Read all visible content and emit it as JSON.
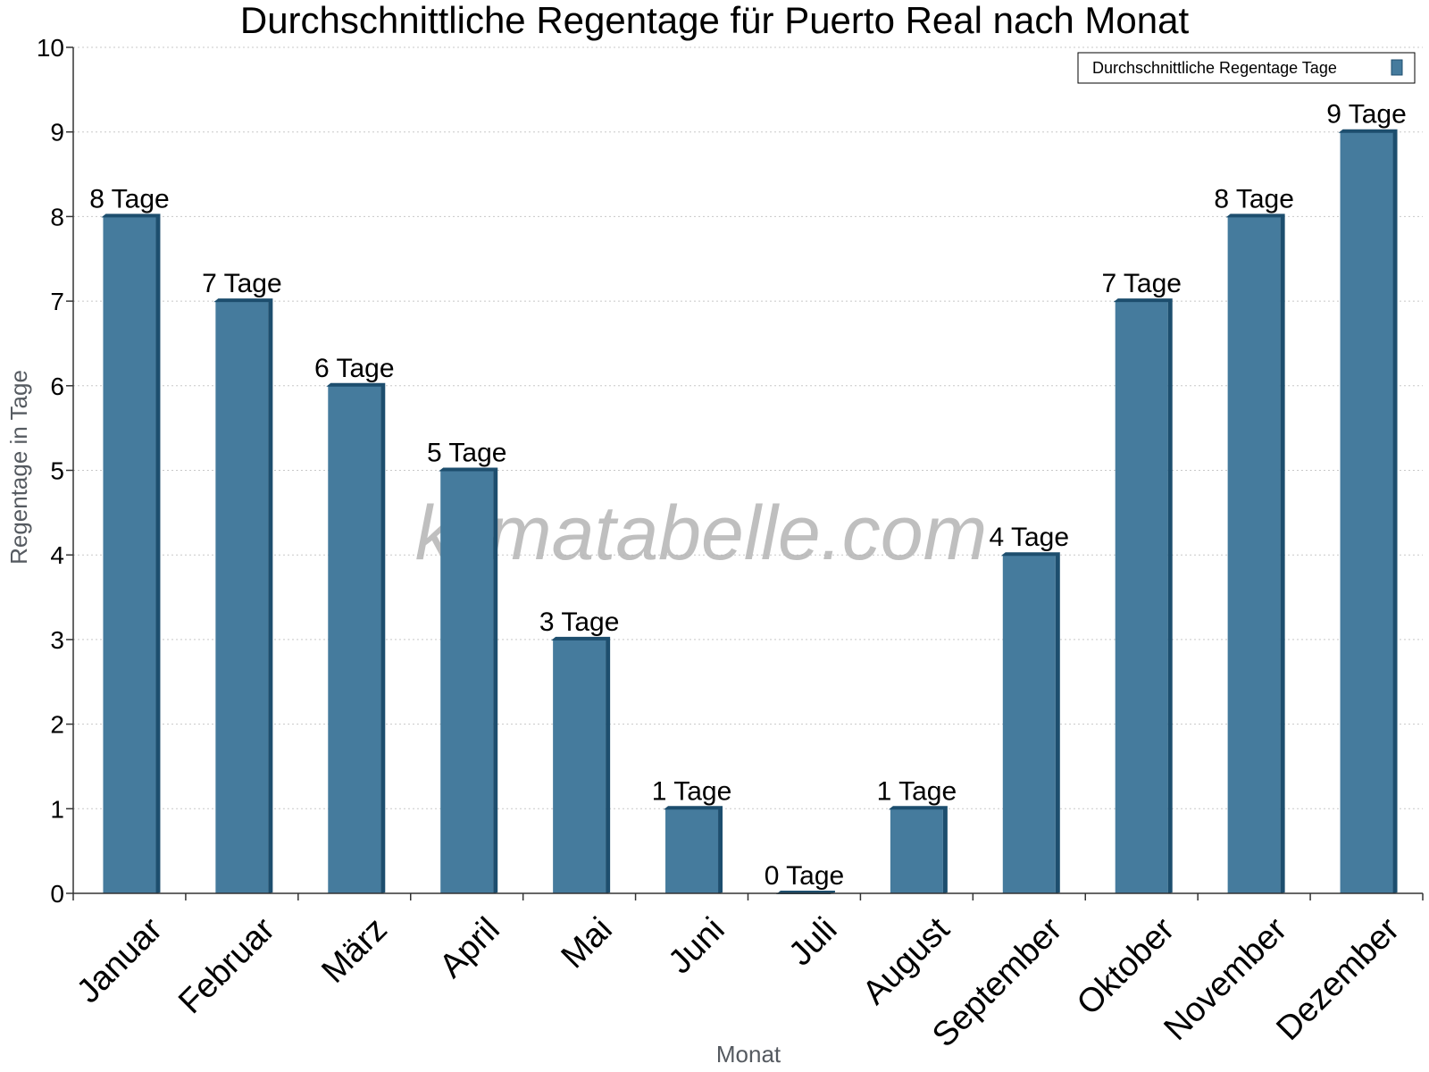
{
  "watermark": "klimatabelle.com",
  "legend": {
    "label": "Durchschnittliche Regentage Tage"
  },
  "colors": {
    "bar_front": "#457b9d",
    "bar_side": "#1d4e6e",
    "gridline": "#c8c8c8",
    "axis": "#333333"
  },
  "chart_data": {
    "type": "bar",
    "title": "Durchschnittliche Regentage für Puerto Real nach Monat",
    "xlabel": "Monat",
    "ylabel": "Regentage in Tage",
    "ylim": [
      0,
      10
    ],
    "y_ticks": [
      "0",
      "1",
      "2",
      "3",
      "4",
      "5",
      "6",
      "7",
      "8",
      "9",
      "10"
    ],
    "grid": "horizontal dotted",
    "legend_position": "top-right",
    "categories": [
      "Januar",
      "Februar",
      "März",
      "April",
      "Mai",
      "Juni",
      "Juli",
      "August",
      "September",
      "Oktober",
      "November",
      "Dezember"
    ],
    "series": [
      {
        "name": "Durchschnittliche Regentage Tage",
        "values": [
          8,
          7,
          6,
          5,
          3,
          1,
          0,
          1,
          4,
          7,
          8,
          9
        ],
        "labels": [
          "8 Tage",
          "7 Tage",
          "6 Tage",
          "5 Tage",
          "3 Tage",
          "1 Tage",
          "0 Tage",
          "1 Tage",
          "4 Tage",
          "7 Tage",
          "8 Tage",
          "9 Tage"
        ]
      }
    ]
  }
}
